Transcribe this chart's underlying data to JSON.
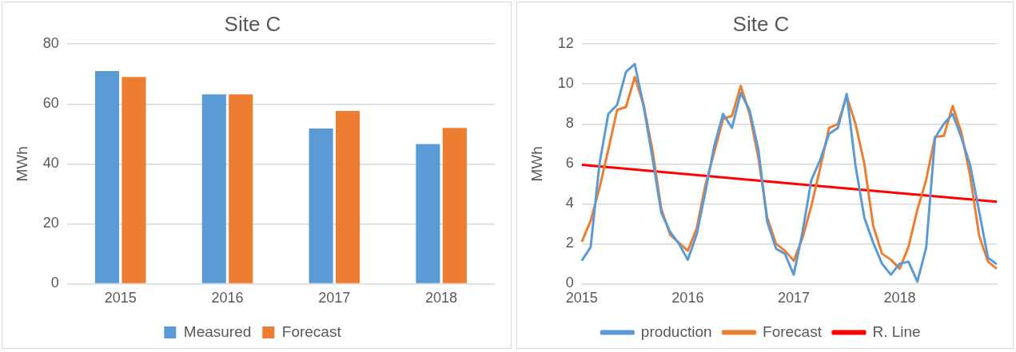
{
  "chart_data": [
    {
      "type": "bar",
      "title": "Site C",
      "ylabel": "MWh",
      "categories": [
        "2015",
        "2016",
        "2017",
        "2018"
      ],
      "series": [
        {
          "name": "Measured",
          "color": "#5b9bd5",
          "values": [
            71,
            63.2,
            51.8,
            46.6
          ]
        },
        {
          "name": "Forecast",
          "color": "#ed7d31",
          "values": [
            69,
            63.2,
            57.7,
            52
          ]
        }
      ],
      "ylim": [
        0,
        80
      ],
      "yticks": [
        0,
        20,
        40,
        60,
        80
      ],
      "grid": "y",
      "legend": "bottom"
    },
    {
      "type": "line",
      "title": "Site C",
      "ylabel": "MWh",
      "categories": [
        "2015",
        null,
        null,
        null,
        null,
        null,
        null,
        null,
        null,
        null,
        null,
        null,
        "2016",
        null,
        null,
        null,
        null,
        null,
        null,
        null,
        null,
        null,
        null,
        null,
        "2017",
        null,
        null,
        null,
        null,
        null,
        null,
        null,
        null,
        null,
        null,
        null,
        "2018",
        null,
        null,
        null,
        null,
        null,
        null,
        null,
        null,
        null,
        null,
        null
      ],
      "series": [
        {
          "name": "production",
          "color": "#5b9bd5",
          "values": [
            1.15,
            1.83,
            6.0,
            8.5,
            8.95,
            10.6,
            11.0,
            8.9,
            6.3,
            3.56,
            2.6,
            2.0,
            1.2,
            2.45,
            4.6,
            6.9,
            8.5,
            7.8,
            9.55,
            8.7,
            6.7,
            3.1,
            1.75,
            1.5,
            0.45,
            2.6,
            5.2,
            6.2,
            7.5,
            7.8,
            9.5,
            5.9,
            3.3,
            2.05,
            1.0,
            0.45,
            1.0,
            1.1,
            0.1,
            1.8,
            7.3,
            8.0,
            8.5,
            7.3,
            5.9,
            3.6,
            1.3,
            0.97
          ]
        },
        {
          "name": "Forecast",
          "color": "#ed7d31",
          "values": [
            2.1,
            3.15,
            4.8,
            6.7,
            8.7,
            8.85,
            10.35,
            8.95,
            6.7,
            3.75,
            2.45,
            2.05,
            1.65,
            2.75,
            4.95,
            6.6,
            8.25,
            8.4,
            9.9,
            8.5,
            6.3,
            3.3,
            2.0,
            1.65,
            1.15,
            2.3,
            3.9,
            5.8,
            7.8,
            8.0,
            9.4,
            8.0,
            6.0,
            2.9,
            1.5,
            1.2,
            0.75,
            1.85,
            3.7,
            5.2,
            7.35,
            7.4,
            8.9,
            7.55,
            5.35,
            2.4,
            1.1,
            0.75
          ]
        },
        {
          "name": "R. Line",
          "color": "#ff0000",
          "values": [
            5.95,
            null,
            null,
            null,
            null,
            null,
            null,
            null,
            null,
            null,
            null,
            null,
            null,
            null,
            null,
            null,
            null,
            null,
            null,
            null,
            null,
            null,
            null,
            null,
            null,
            null,
            null,
            null,
            null,
            null,
            null,
            null,
            null,
            null,
            null,
            null,
            null,
            null,
            null,
            null,
            null,
            null,
            null,
            null,
            null,
            null,
            null,
            4.1
          ]
        }
      ],
      "ylim": [
        0,
        12
      ],
      "yticks": [
        0,
        2,
        4,
        6,
        8,
        10,
        12
      ],
      "grid": "y",
      "legend": "bottom",
      "marker": "none",
      "line_style": "solid"
    }
  ]
}
